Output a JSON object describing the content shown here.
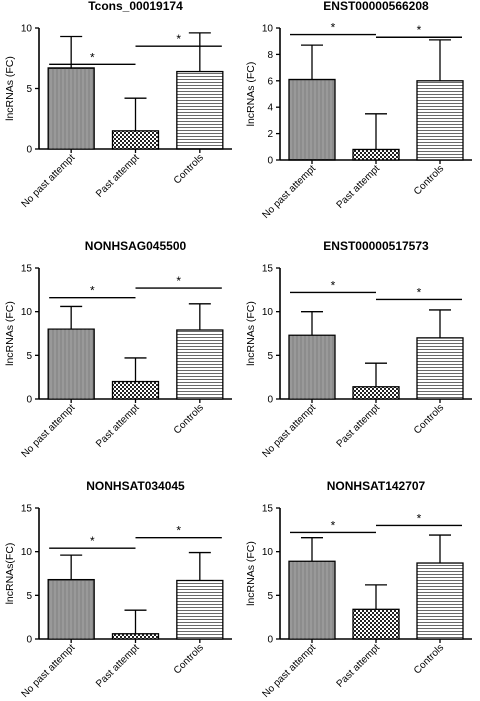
{
  "chart_data": [
    {
      "type": "bar",
      "title": "Tcons_00019174",
      "ylabel": "lncRNAs (FC)",
      "categories": [
        "No past attempt",
        "Past attempt",
        "Controls"
      ],
      "values": [
        6.7,
        1.5,
        6.4
      ],
      "errors": [
        2.6,
        2.7,
        3.2
      ],
      "ylim": [
        0,
        10
      ],
      "yticks": [
        "0",
        "5",
        "10"
      ],
      "significance": [
        {
          "from": 0,
          "to": 1,
          "label": "*",
          "level": 7.0
        },
        {
          "from": 1,
          "to": 2,
          "label": "*",
          "level": 8.5
        }
      ]
    },
    {
      "type": "bar",
      "title": "ENST00000566208",
      "ylabel": "lncRNAs (FC)",
      "categories": [
        "No past attempt",
        "Past attempt",
        "Controls"
      ],
      "values": [
        6.1,
        0.8,
        6.0
      ],
      "errors": [
        2.6,
        2.7,
        3.1
      ],
      "ylim": [
        0,
        10
      ],
      "yticks": [
        "0",
        "2",
        "4",
        "6",
        "8",
        "10"
      ],
      "significance": [
        {
          "from": 0,
          "to": 1,
          "label": "*",
          "level": 9.5
        },
        {
          "from": 1,
          "to": 2,
          "label": "*",
          "level": 9.3
        }
      ]
    },
    {
      "type": "bar",
      "title": "NONHSAG045500",
      "ylabel": "lncRNAs (FC)",
      "categories": [
        "No past attempt",
        "Past attempt",
        "Controls"
      ],
      "values": [
        8.0,
        2.0,
        7.9
      ],
      "errors": [
        2.6,
        2.7,
        3.0
      ],
      "ylim": [
        0,
        15
      ],
      "yticks": [
        "0",
        "5",
        "10",
        "15"
      ],
      "significance": [
        {
          "from": 0,
          "to": 1,
          "label": "*",
          "level": 11.6
        },
        {
          "from": 1,
          "to": 2,
          "label": "*",
          "level": 12.7
        }
      ]
    },
    {
      "type": "bar",
      "title": "ENST00000517573",
      "ylabel": "lncRNAs (FC)",
      "categories": [
        "No past attempt",
        "Past attempt",
        "Controls"
      ],
      "values": [
        7.3,
        1.4,
        7.0
      ],
      "errors": [
        2.7,
        2.7,
        3.2
      ],
      "ylim": [
        0,
        15
      ],
      "yticks": [
        "0",
        "5",
        "10",
        "15"
      ],
      "significance": [
        {
          "from": 0,
          "to": 1,
          "label": "*",
          "level": 12.2
        },
        {
          "from": 1,
          "to": 2,
          "label": "*",
          "level": 11.4
        }
      ]
    },
    {
      "type": "bar",
      "title": "NONHSAT034045",
      "ylabel": "lncRNAs(FC)",
      "categories": [
        "No past attempt",
        "Past attempt",
        "Controls"
      ],
      "values": [
        6.8,
        0.6,
        6.7
      ],
      "errors": [
        2.8,
        2.7,
        3.2
      ],
      "ylim": [
        0,
        15
      ],
      "yticks": [
        "0",
        "5",
        "10",
        "15"
      ],
      "significance": [
        {
          "from": 0,
          "to": 1,
          "label": "*",
          "level": 10.4
        },
        {
          "from": 1,
          "to": 2,
          "label": "*",
          "level": 11.6
        }
      ]
    },
    {
      "type": "bar",
      "title": "NONHSAT142707",
      "ylabel": "lncRNAs (FC)",
      "categories": [
        "No past attempt",
        "Past attempt",
        "Controls"
      ],
      "values": [
        8.9,
        3.4,
        8.7
      ],
      "errors": [
        2.7,
        2.8,
        3.2
      ],
      "ylim": [
        0,
        15
      ],
      "yticks": [
        "0",
        "5",
        "10",
        "15"
      ],
      "significance": [
        {
          "from": 0,
          "to": 1,
          "label": "*",
          "level": 12.2
        },
        {
          "from": 1,
          "to": 2,
          "label": "*",
          "level": 13.0
        }
      ]
    }
  ]
}
